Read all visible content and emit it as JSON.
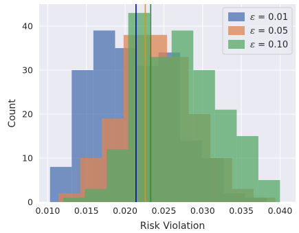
{
  "chart_data": {
    "type": "histogram",
    "xlabel": "Risk Violation",
    "ylabel": "Count",
    "xlim": [
      0.0089,
      0.042
    ],
    "ylim": [
      0,
      45
    ],
    "xticks": [
      "0.010",
      "0.015",
      "0.020",
      "0.025",
      "0.030",
      "0.035",
      "0.040"
    ],
    "xtick_values": [
      0.01,
      0.015,
      0.02,
      0.025,
      0.03,
      0.035,
      0.04
    ],
    "yticks": [
      "0",
      "10",
      "20",
      "30",
      "40"
    ],
    "ytick_values": [
      0,
      10,
      20,
      30,
      40
    ],
    "grid": true,
    "legend_position": "top-right",
    "background_color": "#eaeaf2",
    "series": [
      {
        "name": "ε = 0.01",
        "legend_symbol": "ε",
        "legend_value": "= 0.01",
        "color": "#4c72b0",
        "bin_edges": [
          0.0103,
          0.0131,
          0.0159,
          0.0187,
          0.0215,
          0.0243,
          0.0271,
          0.0299,
          0.0327,
          0.0355,
          0.0383
        ],
        "counts": [
          8,
          30,
          39,
          35,
          31,
          34,
          14,
          10,
          2,
          1
        ]
      },
      {
        "name": "ε = 0.05",
        "legend_symbol": "ε",
        "legend_value": "= 0.05",
        "color": "#dd8452",
        "bin_edges": [
          0.0114,
          0.0142,
          0.017,
          0.0198,
          0.0226,
          0.0254,
          0.0282,
          0.031,
          0.0338,
          0.0366,
          0.0394
        ],
        "counts": [
          2,
          10,
          19,
          38,
          38,
          33,
          20,
          10,
          3,
          1
        ]
      },
      {
        "name": "ε = 0.10",
        "legend_symbol": "ε",
        "legend_value": "= 0.10",
        "color": "#55a868",
        "bin_edges": [
          0.012,
          0.0148,
          0.0176,
          0.0204,
          0.0232,
          0.026,
          0.0288,
          0.0316,
          0.0344,
          0.0372,
          0.04
        ],
        "counts": [
          1,
          3,
          12,
          43,
          33,
          39,
          30,
          21,
          15,
          5
        ]
      }
    ],
    "vlines": [
      {
        "x": 0.0214,
        "color": "#0000cc"
      },
      {
        "x": 0.0226,
        "color": "#e69500"
      },
      {
        "x": 0.0233,
        "color": "#2e8b2e"
      }
    ]
  }
}
